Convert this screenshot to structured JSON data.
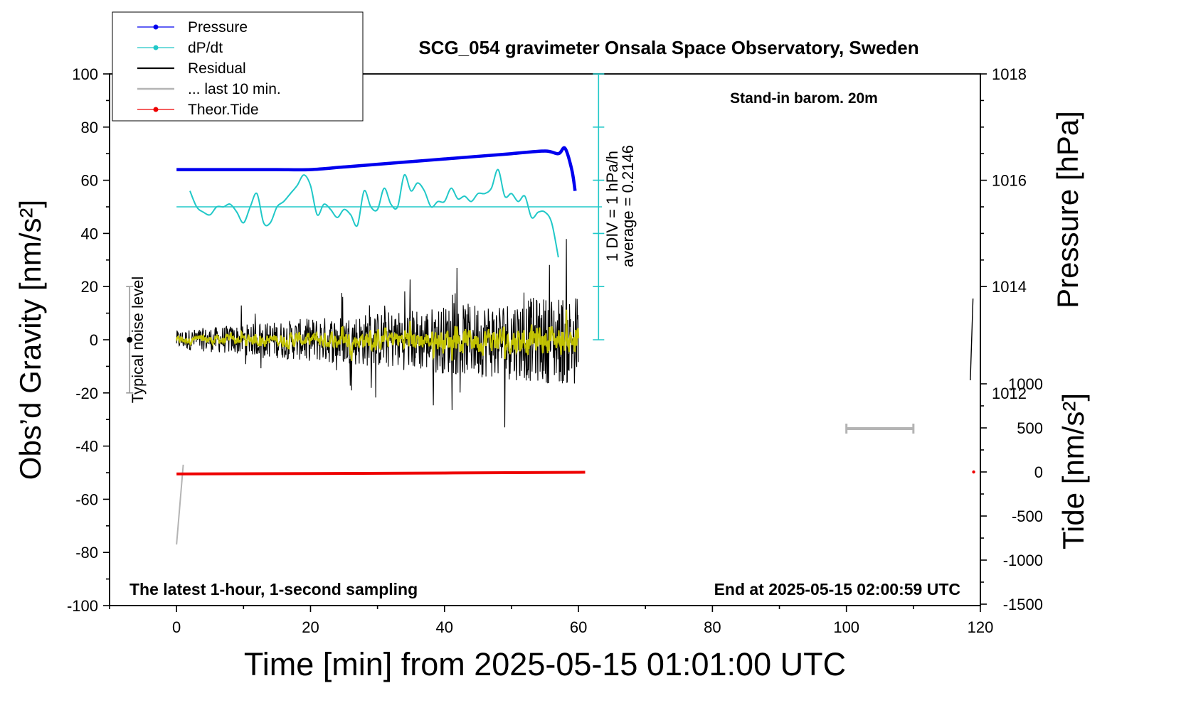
{
  "chart_data": {
    "type": "line",
    "title": "SCG_054 gravimeter Onsala Space Observatory, Sweden",
    "xlabel": "Time [min] from 2025-05-15 01:01:00 UTC",
    "ylabel_left": "Obs’d Gravity [nm/s²]",
    "ylabel_right_top": "Pressure [hPa]",
    "ylabel_right_bottom": "Tide [nm/s²]",
    "xlim": [
      -10,
      120
    ],
    "ylim_left": [
      -100,
      100
    ],
    "x_ticks": [
      "0",
      "20",
      "40",
      "60",
      "80",
      "100",
      "120"
    ],
    "y_left_ticks": [
      "100",
      "80",
      "60",
      "40",
      "20",
      "0",
      "-20",
      "-40",
      "-60",
      "-80",
      "-100"
    ],
    "pressure_ticks": [
      "1018",
      "1016",
      "1014",
      "1012"
    ],
    "tide_ticks": [
      "1000",
      "500",
      "0",
      "-500",
      "-1000",
      "-1500"
    ],
    "annotations": {
      "barometer": "Stand-in barom. 20m",
      "latest": "The latest 1-hour, 1-second sampling",
      "end": "End at 2025-05-15 02:00:59 UTC",
      "noise": "Typical noise level",
      "scale_line1": "1 DIV = 1 hPa/h",
      "scale_line2": "average = 0.2146"
    },
    "legend_position": "top-left",
    "legend": [
      "Pressure",
      "dP/dt",
      "Residual",
      "... last 10 min.",
      "Theor.Tide"
    ],
    "colors": {
      "pressure": "#0000ee",
      "dpdt": "#20c8c8",
      "residual": "#000000",
      "residual_filtered": "#c8c800",
      "last10": "#b4b4b4",
      "tide": "#ee0000"
    },
    "series": [
      {
        "name": "Pressure",
        "unit": "hPa",
        "x": [
          0,
          5,
          10,
          15,
          20,
          25,
          30,
          35,
          40,
          45,
          50,
          55,
          57,
          58,
          59,
          59.5
        ],
        "values": [
          1016.2,
          1016.2,
          1016.2,
          1016.2,
          1016.2,
          1016.25,
          1016.3,
          1016.35,
          1016.4,
          1016.45,
          1016.5,
          1016.55,
          1016.5,
          1016.6,
          1016.2,
          1015.8
        ]
      },
      {
        "name": "dP/dt",
        "unit": "gravity-scale",
        "x": [
          2,
          3,
          4,
          5,
          6,
          7,
          8,
          9,
          10,
          11,
          12,
          13,
          14,
          15,
          16,
          17,
          18,
          19,
          20,
          21,
          22,
          23,
          24,
          25,
          26,
          27,
          28,
          29,
          30,
          31,
          32,
          33,
          34,
          35,
          36,
          37,
          38,
          39,
          40,
          41,
          42,
          43,
          44,
          45,
          46,
          47,
          48,
          49,
          50,
          51,
          52,
          53,
          54,
          55,
          56,
          57
        ],
        "values": [
          56,
          50,
          48,
          47,
          50,
          50,
          51,
          48,
          44,
          50,
          55,
          44,
          44,
          50,
          52,
          55,
          58,
          62,
          58,
          47,
          51,
          49,
          46,
          49,
          47,
          43,
          56,
          50,
          49,
          57,
          51,
          50,
          62,
          56,
          59,
          56,
          50,
          52,
          52,
          57,
          53,
          54,
          52,
          55,
          55,
          57,
          64,
          54,
          55,
          52,
          54,
          46,
          48,
          48,
          44,
          31
        ]
      },
      {
        "name": "Residual",
        "unit": "nm/s²",
        "x": [
          0,
          60
        ],
        "values": [
          0,
          0
        ],
        "note_envelope_start": 5,
        "note_envelope_end": 25
      },
      {
        "name": "... last 10 min.",
        "unit": "nm/s²",
        "x": [
          0,
          1
        ],
        "values": [
          -77,
          -47
        ]
      },
      {
        "name": "Theor.Tide",
        "unit": "nm/s²",
        "x": [
          0,
          20,
          40,
          60,
          61
        ],
        "values": [
          -22,
          -18,
          -12,
          -4,
          -3
        ]
      }
    ]
  }
}
